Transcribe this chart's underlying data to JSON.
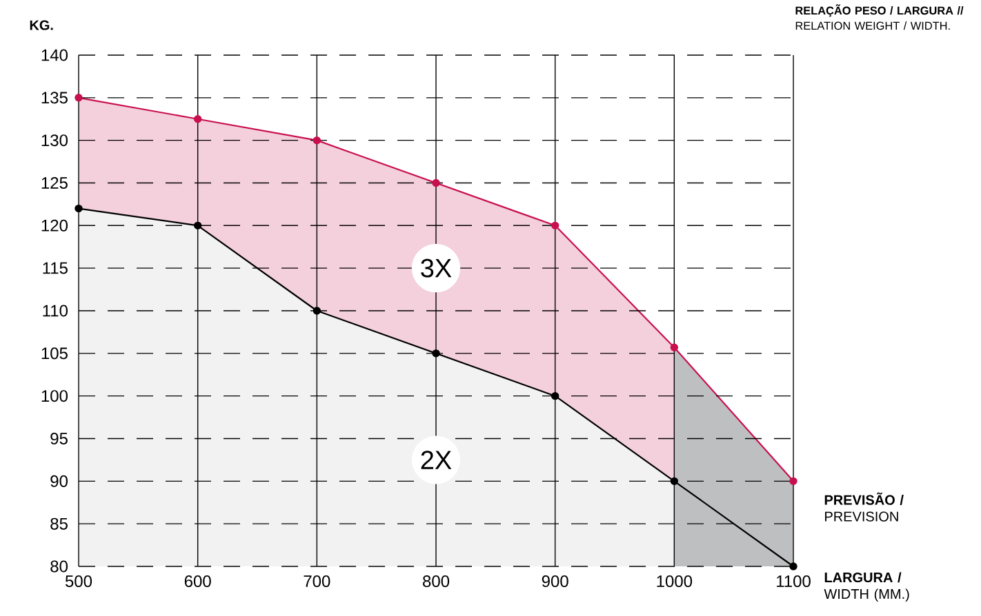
{
  "chart_data": {
    "type": "area",
    "title": "**RELAÇÃO PESO / LARGURA //** RELATION WEIGHT / WIDTH.",
    "ylabel": "KG.",
    "xlabel": "**LARGURA /** WIDTH (MM.)",
    "x": [
      500,
      600,
      700,
      800,
      900,
      1000,
      1100
    ],
    "series": [
      {
        "name": "3X",
        "color": "#c8104e",
        "values": [
          135,
          132.5,
          130,
          125,
          120,
          105.7,
          90
        ]
      },
      {
        "name": "2X",
        "color": "#000000",
        "values": [
          122,
          120,
          110,
          105,
          100,
          90,
          80
        ]
      }
    ],
    "xlim": [
      500,
      1100
    ],
    "ylim": [
      80,
      140
    ],
    "xticks": [
      500,
      600,
      700,
      800,
      900,
      1000,
      1100
    ],
    "yticks": [
      80,
      85,
      90,
      95,
      100,
      105,
      110,
      115,
      120,
      125,
      130,
      135,
      140
    ],
    "bands": [
      {
        "axis": "x",
        "from": 1000,
        "to": 1100,
        "label": "**PREVISÃO /** PREVISION",
        "color": "#bebfc1"
      }
    ],
    "grid": true,
    "marker": "circle"
  }
}
